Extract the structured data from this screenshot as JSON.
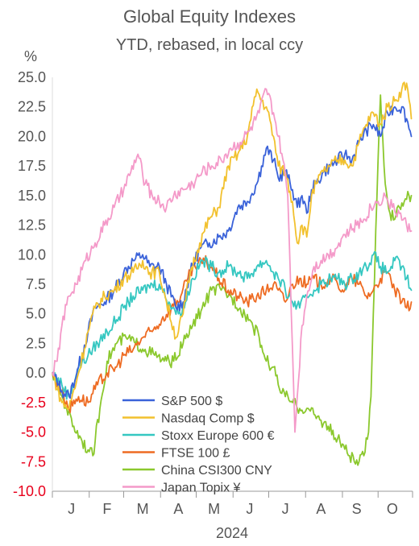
{
  "chart_data": {
    "type": "line",
    "title": "Global Equity Indexes",
    "subtitle": "YTD, rebased, in local ccy",
    "ylabel": "%",
    "xlabel": "2024",
    "ylim": [
      -10,
      25
    ],
    "yticks": [
      "25.0",
      "22.5",
      "20.0",
      "17.5",
      "15.0",
      "12.5",
      "10.0",
      "7.5",
      "5.0",
      "2.5",
      "0.0",
      "-2.5",
      "-5.0",
      "-7.5",
      "-10.0"
    ],
    "ytick_values": [
      25,
      22.5,
      20,
      17.5,
      15,
      12.5,
      10,
      7.5,
      5,
      2.5,
      0,
      -2.5,
      -5,
      -7.5,
      -10
    ],
    "negative_tick_color": "#e8001c",
    "positive_tick_color": "#555555",
    "months": [
      "J",
      "F",
      "M",
      "A",
      "M",
      "J",
      "J",
      "A",
      "S",
      "O"
    ],
    "month_centers": [
      16,
      46,
      76,
      106,
      136,
      166,
      196,
      226,
      256,
      286
    ],
    "x_domain": [
      0,
      303
    ],
    "x_units": "day of year 2024",
    "legend_position": "bottom-center",
    "grid": false,
    "series": [
      {
        "name": "S&P 500 $",
        "color": "#3a62d9",
        "x": [
          0,
          8,
          14,
          22,
          30,
          36,
          44,
          52,
          60,
          68,
          76,
          82,
          90,
          96,
          104,
          110,
          116,
          124,
          132,
          140,
          148,
          156,
          164,
          172,
          176,
          180,
          186,
          190,
          196,
          202,
          206,
          210,
          214,
          218,
          222,
          228,
          234,
          240,
          246,
          252,
          258,
          264,
          270,
          276,
          282,
          288,
          294,
          298,
          302
        ],
        "values": [
          0,
          -1.5,
          -2.0,
          0.5,
          3.5,
          5.5,
          6.0,
          7.0,
          8.5,
          9.5,
          10.0,
          9.0,
          9.0,
          7.5,
          5.5,
          6.0,
          8.5,
          10.5,
          11.0,
          11.5,
          12.0,
          14.0,
          14.5,
          16.0,
          17.5,
          19.0,
          18.0,
          16.5,
          17.0,
          15.5,
          14.0,
          15.0,
          13.5,
          15.5,
          16.0,
          17.0,
          17.5,
          18.0,
          18.5,
          18.0,
          19.5,
          20.5,
          21.0,
          20.0,
          22.0,
          22.5,
          22.5,
          21.5,
          20.0
        ]
      },
      {
        "name": "Nasdaq Comp $",
        "color": "#f2c12e",
        "x": [
          0,
          8,
          14,
          22,
          30,
          36,
          44,
          52,
          60,
          68,
          76,
          82,
          90,
          96,
          104,
          110,
          116,
          124,
          132,
          140,
          148,
          156,
          164,
          172,
          176,
          180,
          186,
          190,
          196,
          202,
          206,
          210,
          214,
          218,
          222,
          228,
          234,
          240,
          246,
          252,
          258,
          264,
          270,
          276,
          282,
          288,
          294,
          298,
          302
        ],
        "values": [
          0,
          -2.5,
          -3.0,
          0.0,
          3.5,
          5.5,
          6.5,
          7.0,
          8.0,
          8.5,
          9.5,
          8.5,
          8.5,
          6.0,
          3.0,
          5.0,
          8.5,
          11.0,
          13.0,
          14.0,
          17.5,
          18.5,
          20.0,
          24.0,
          23.0,
          22.5,
          20.0,
          17.5,
          17.0,
          14.5,
          11.0,
          12.5,
          11.5,
          15.0,
          16.0,
          17.0,
          17.5,
          18.0,
          18.0,
          17.5,
          19.5,
          21.0,
          22.0,
          21.0,
          22.5,
          23.0,
          24.0,
          24.5,
          21.5
        ]
      },
      {
        "name": "Stoxx Europe 600 €",
        "color": "#35c7c1",
        "x": [
          0,
          8,
          14,
          22,
          30,
          38,
          46,
          54,
          60,
          68,
          76,
          84,
          90,
          98,
          106,
          112,
          118,
          126,
          134,
          140,
          148,
          156,
          164,
          172,
          180,
          186,
          190,
          196,
          202,
          208,
          214,
          220,
          226,
          234,
          240,
          246,
          252,
          258,
          264,
          270,
          276,
          282,
          288,
          294,
          298,
          302
        ],
        "values": [
          0,
          -1.0,
          -2.0,
          0.5,
          1.5,
          2.5,
          3.5,
          4.5,
          5.5,
          6.5,
          7.0,
          7.5,
          7.5,
          6.0,
          5.0,
          6.0,
          8.0,
          9.5,
          9.0,
          8.5,
          9.0,
          8.5,
          8.0,
          9.0,
          9.5,
          8.5,
          8.0,
          7.0,
          6.0,
          5.5,
          6.5,
          7.0,
          7.5,
          8.0,
          8.0,
          7.5,
          8.0,
          8.5,
          9.0,
          10.0,
          9.0,
          8.5,
          9.5,
          9.0,
          8.0,
          7.0
        ]
      },
      {
        "name": "FTSE 100 £",
        "color": "#ee6b22",
        "x": [
          0,
          8,
          14,
          22,
          30,
          38,
          46,
          54,
          60,
          68,
          76,
          84,
          92,
          100,
          108,
          114,
          120,
          128,
          134,
          140,
          148,
          156,
          164,
          172,
          180,
          186,
          190,
          196,
          202,
          208,
          214,
          220,
          226,
          234,
          240,
          246,
          252,
          258,
          264,
          270,
          276,
          282,
          288,
          294,
          298,
          302
        ],
        "values": [
          0,
          -1.5,
          -3.0,
          -2.0,
          -2.5,
          -1.0,
          0.0,
          0.5,
          1.5,
          2.0,
          3.0,
          3.5,
          4.5,
          5.5,
          6.5,
          8.0,
          9.0,
          9.5,
          9.0,
          8.0,
          7.0,
          6.5,
          6.0,
          6.5,
          7.0,
          7.5,
          7.0,
          6.0,
          7.5,
          8.0,
          7.5,
          8.0,
          7.5,
          8.0,
          7.5,
          7.0,
          8.0,
          7.5,
          6.5,
          7.0,
          8.0,
          8.5,
          7.0,
          6.0,
          5.5,
          6.0
        ]
      },
      {
        "name": "China CSI300 CNY",
        "color": "#8bc82d",
        "x": [
          0,
          6,
          12,
          18,
          24,
          30,
          34,
          40,
          46,
          54,
          62,
          70,
          78,
          86,
          94,
          102,
          110,
          118,
          126,
          134,
          142,
          150,
          158,
          166,
          174,
          180,
          186,
          190,
          196,
          202,
          208,
          214,
          220,
          226,
          232,
          238,
          244,
          250,
          254,
          258,
          262,
          266,
          268,
          270,
          272,
          274,
          276,
          280,
          284,
          288,
          292,
          296,
          300,
          302
        ],
        "values": [
          0,
          -1.5,
          -3.0,
          -4.5,
          -5.5,
          -6.5,
          -7.0,
          -3.0,
          1.0,
          2.5,
          3.0,
          2.5,
          2.0,
          1.5,
          1.0,
          1.0,
          2.5,
          4.0,
          5.5,
          7.0,
          7.0,
          6.5,
          5.5,
          4.5,
          3.0,
          1.0,
          0.5,
          -1.0,
          -2.0,
          -2.5,
          -3.0,
          -3.0,
          -3.5,
          -4.0,
          -4.5,
          -5.5,
          -6.0,
          -7.0,
          -7.5,
          -7.5,
          -7.0,
          -5.0,
          -2.0,
          5.0,
          12.0,
          18.0,
          23.5,
          16.0,
          13.5,
          13.0,
          14.0,
          14.5,
          15.0,
          15.0
        ]
      },
      {
        "name": "Japan Topix ¥",
        "color": "#f49ac9",
        "x": [
          0,
          4,
          8,
          14,
          20,
          28,
          36,
          44,
          52,
          60,
          66,
          72,
          78,
          84,
          90,
          96,
          102,
          110,
          118,
          126,
          134,
          142,
          150,
          158,
          166,
          174,
          180,
          186,
          190,
          194,
          198,
          200,
          202,
          204,
          206,
          210,
          214,
          220,
          226,
          232,
          238,
          244,
          250,
          256,
          262,
          268,
          274,
          280,
          286,
          292,
          298,
          302
        ],
        "values": [
          0,
          1.0,
          4.0,
          6.5,
          7.5,
          9.5,
          11.0,
          12.5,
          14.0,
          15.5,
          17.0,
          18.5,
          16.0,
          15.0,
          14.5,
          14.0,
          15.0,
          15.5,
          16.0,
          17.0,
          17.5,
          18.0,
          19.0,
          19.5,
          20.5,
          22.0,
          24.0,
          22.0,
          20.0,
          18.0,
          15.0,
          9.0,
          2.0,
          -5.0,
          -2.0,
          4.0,
          6.5,
          9.0,
          9.5,
          10.0,
          10.5,
          11.5,
          12.0,
          12.5,
          13.0,
          14.0,
          14.5,
          15.0,
          14.0,
          13.5,
          12.5,
          12.0
        ]
      }
    ]
  }
}
